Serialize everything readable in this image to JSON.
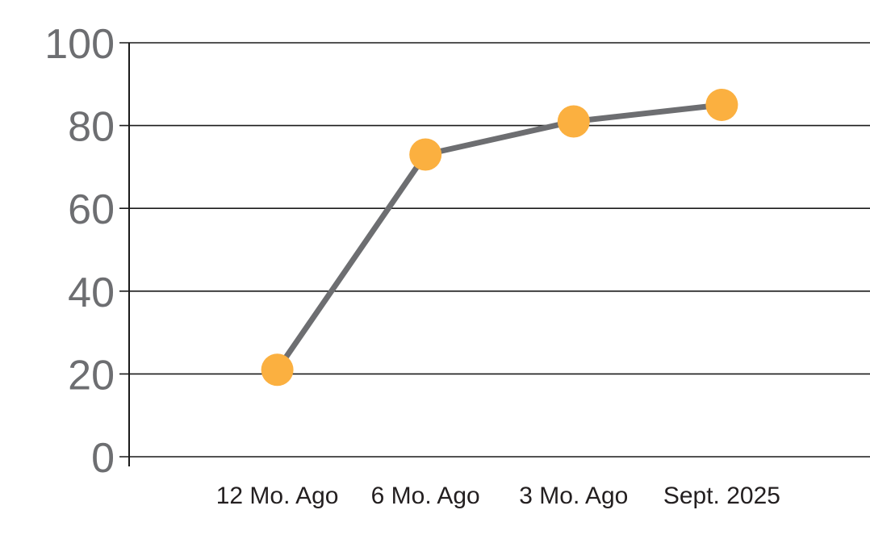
{
  "chart_data": {
    "type": "line",
    "title": "",
    "xlabel": "",
    "ylabel": "",
    "categories": [
      "12 Mo. Ago",
      "6 Mo. Ago",
      "3 Mo. Ago",
      "Sept. 2025"
    ],
    "series": [
      {
        "name": "trend",
        "values": [
          21,
          73,
          81,
          85
        ]
      }
    ],
    "ylim": [
      0,
      100
    ],
    "yticks": [
      0,
      20,
      40,
      60,
      80,
      100
    ],
    "grid": true,
    "legend": false,
    "colors": {
      "marker": "#FBB040",
      "line": "#6D6E71",
      "ytick_label": "#6D6E71",
      "xtick_label": "#231F20",
      "gridline": "#1A1A1A",
      "axis": "#1A1A1A",
      "background": "#FFFFFF"
    }
  }
}
